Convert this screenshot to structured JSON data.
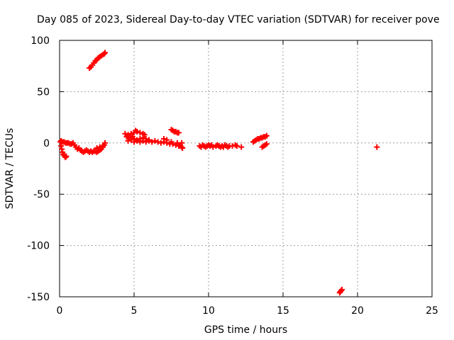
{
  "chart_data": {
    "type": "scatter",
    "title": "Day 085 of 2023, Sidereal Day-to-day VTEC variation (SDTVAR) for receiver pove",
    "xlabel": "GPS time / hours",
    "ylabel": "SDTVAR / TECUs",
    "xlim": [
      0,
      25
    ],
    "ylim": [
      -150,
      100
    ],
    "xticks": [
      0,
      5,
      10,
      15,
      20,
      25
    ],
    "yticks": [
      100,
      50,
      0,
      -50,
      -100,
      -150
    ],
    "grid": true,
    "marker_color": "#ff0000",
    "series": [
      {
        "name": "SDTVAR",
        "points": [
          [
            0.05,
            1
          ],
          [
            0.1,
            -3
          ],
          [
            0.15,
            -6
          ],
          [
            0.2,
            -9
          ],
          [
            0.25,
            -11
          ],
          [
            0.3,
            -12
          ],
          [
            0.35,
            -13
          ],
          [
            0.4,
            -14
          ],
          [
            0.45,
            -13
          ],
          [
            0.1,
            2
          ],
          [
            0.2,
            1
          ],
          [
            0.3,
            1
          ],
          [
            0.4,
            0
          ],
          [
            0.5,
            0
          ],
          [
            0.6,
            0
          ],
          [
            0.7,
            -1
          ],
          [
            0.8,
            -1
          ],
          [
            0.9,
            0
          ],
          [
            1.0,
            -2
          ],
          [
            1.1,
            -4
          ],
          [
            1.2,
            -6
          ],
          [
            1.3,
            -5
          ],
          [
            1.4,
            -7
          ],
          [
            1.5,
            -8
          ],
          [
            1.6,
            -9
          ],
          [
            1.7,
            -8
          ],
          [
            1.8,
            -7
          ],
          [
            1.9,
            -8
          ],
          [
            2.0,
            -9
          ],
          [
            2.1,
            -8
          ],
          [
            2.2,
            -9
          ],
          [
            2.3,
            -8
          ],
          [
            2.4,
            -8
          ],
          [
            2.5,
            -9
          ],
          [
            2.6,
            -8
          ],
          [
            2.7,
            -7
          ],
          [
            2.8,
            -6
          ],
          [
            2.9,
            -4
          ],
          [
            3.0,
            -2
          ],
          [
            3.05,
            0
          ],
          [
            2.5,
            -5
          ],
          [
            2.7,
            -4
          ],
          [
            2.9,
            -3
          ],
          [
            2.0,
            73
          ],
          [
            2.1,
            74
          ],
          [
            2.2,
            76
          ],
          [
            2.3,
            78
          ],
          [
            2.4,
            80
          ],
          [
            2.5,
            81
          ],
          [
            2.6,
            83
          ],
          [
            2.7,
            84
          ],
          [
            2.8,
            85
          ],
          [
            2.9,
            86
          ],
          [
            3.0,
            87
          ],
          [
            3.05,
            88
          ],
          [
            4.4,
            9
          ],
          [
            4.6,
            8
          ],
          [
            4.8,
            9
          ],
          [
            5.0,
            10
          ],
          [
            5.1,
            12
          ],
          [
            5.2,
            11
          ],
          [
            5.4,
            10
          ],
          [
            5.6,
            9
          ],
          [
            5.7,
            8
          ],
          [
            4.5,
            6
          ],
          [
            4.7,
            5
          ],
          [
            4.9,
            6
          ],
          [
            5.0,
            4
          ],
          [
            5.2,
            3
          ],
          [
            5.4,
            4
          ],
          [
            5.6,
            5
          ],
          [
            5.8,
            4
          ],
          [
            6.0,
            3
          ],
          [
            4.6,
            2
          ],
          [
            4.8,
            3
          ],
          [
            5.0,
            1
          ],
          [
            5.2,
            2
          ],
          [
            5.4,
            1
          ],
          [
            5.6,
            2
          ],
          [
            5.8,
            1
          ],
          [
            6.0,
            2
          ],
          [
            6.2,
            1
          ],
          [
            6.4,
            2
          ],
          [
            6.6,
            1
          ],
          [
            6.8,
            0
          ],
          [
            7.0,
            1
          ],
          [
            7.0,
            4
          ],
          [
            7.2,
            3
          ],
          [
            7.2,
            0
          ],
          [
            7.4,
            -1
          ],
          [
            7.6,
            -1
          ],
          [
            7.8,
            -2
          ],
          [
            8.0,
            -3
          ],
          [
            8.1,
            -2
          ],
          [
            8.2,
            -4
          ],
          [
            8.25,
            -5
          ],
          [
            7.5,
            1
          ],
          [
            7.9,
            0
          ],
          [
            8.2,
            0
          ],
          [
            7.5,
            13
          ],
          [
            7.6,
            12
          ],
          [
            7.7,
            11
          ],
          [
            7.8,
            11
          ],
          [
            7.9,
            10
          ],
          [
            8.0,
            10
          ],
          [
            9.4,
            -3
          ],
          [
            9.5,
            -4
          ],
          [
            9.6,
            -2
          ],
          [
            9.7,
            -3
          ],
          [
            9.8,
            -4
          ],
          [
            9.9,
            -3
          ],
          [
            10.0,
            -2
          ],
          [
            10.1,
            -3
          ],
          [
            10.2,
            -2
          ],
          [
            10.3,
            -4
          ],
          [
            10.5,
            -3
          ],
          [
            10.6,
            -2
          ],
          [
            10.7,
            -3
          ],
          [
            10.8,
            -4
          ],
          [
            10.9,
            -3
          ],
          [
            11.0,
            -4
          ],
          [
            11.1,
            -2
          ],
          [
            11.2,
            -3
          ],
          [
            11.3,
            -4
          ],
          [
            11.4,
            -3
          ],
          [
            11.6,
            -3
          ],
          [
            11.8,
            -2
          ],
          [
            11.9,
            -3
          ],
          [
            12.2,
            -4
          ],
          [
            13.0,
            1
          ],
          [
            13.1,
            2
          ],
          [
            13.2,
            3
          ],
          [
            13.3,
            4
          ],
          [
            13.4,
            4
          ],
          [
            13.5,
            5
          ],
          [
            13.6,
            5
          ],
          [
            13.7,
            6
          ],
          [
            13.8,
            6
          ],
          [
            13.9,
            7
          ],
          [
            13.6,
            -4
          ],
          [
            13.7,
            -3
          ],
          [
            13.8,
            -2
          ],
          [
            13.9,
            -1
          ],
          [
            18.8,
            -146
          ],
          [
            18.85,
            -145
          ],
          [
            18.9,
            -144
          ],
          [
            18.95,
            -143
          ],
          [
            21.3,
            -4
          ]
        ]
      }
    ]
  }
}
